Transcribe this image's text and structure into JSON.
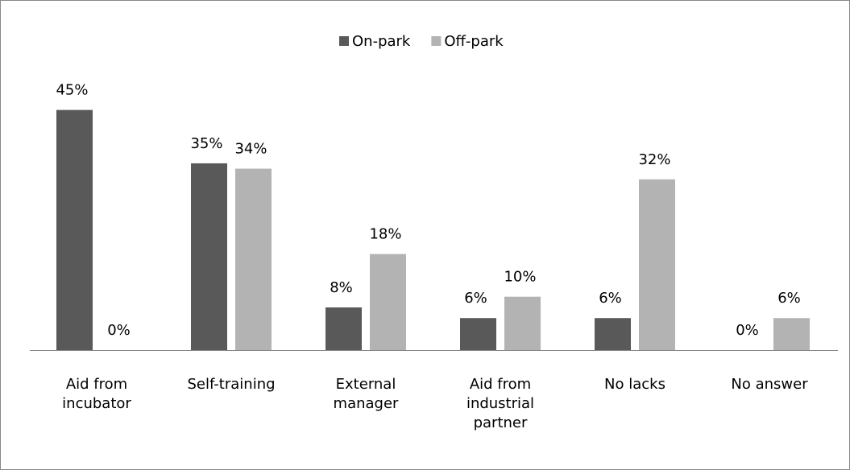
{
  "chart_data": {
    "type": "bar",
    "categories": [
      "Aid from incubator",
      "Self-training",
      "External manager",
      "Aid from industrial partner",
      "No lacks",
      "No answer"
    ],
    "series": [
      {
        "name": "On-park",
        "color": "#595959",
        "values": [
          45,
          35,
          8,
          6,
          6,
          0
        ],
        "value_labels": [
          "45%",
          "35%",
          "8%",
          "6%",
          "6%",
          "0%"
        ]
      },
      {
        "name": "Off-park",
        "color": "#b3b3b3",
        "values": [
          0,
          34,
          18,
          10,
          32,
          6
        ],
        "value_labels": [
          "0%",
          "34%",
          "18%",
          "10%",
          "32%",
          "6%"
        ]
      }
    ],
    "legend": "top"
  }
}
